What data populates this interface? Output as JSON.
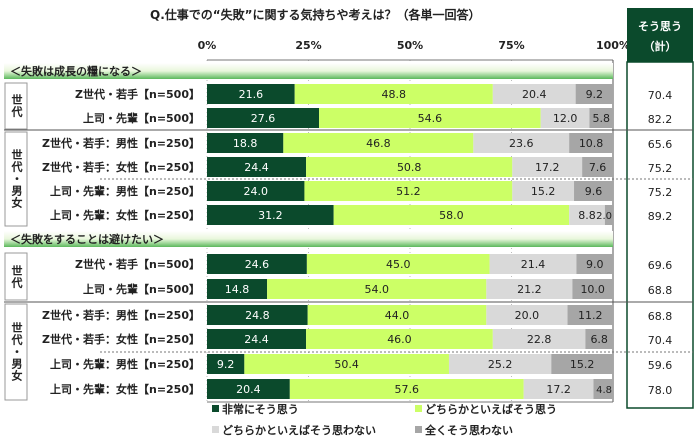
{
  "chart_data": {
    "type": "bar",
    "orientation": "horizontal",
    "stacked": true,
    "title": "Q.仕事での“失敗”に関する気持ちや考えは？（各単一回答）",
    "xlim": [
      0,
      100
    ],
    "x_ticks": [
      "0%",
      "25%",
      "50%",
      "75%",
      "100%"
    ],
    "grid": true,
    "legend_position": "bottom",
    "series": [
      {
        "name": "非常にそう思う",
        "color": "#0b4a2c"
      },
      {
        "name": "どちらかといえばそう思う",
        "color": "#ccff66"
      },
      {
        "name": "どちらかといえばそう思わない",
        "color": "#d9d9d9"
      },
      {
        "name": "全くそう思わない",
        "color": "#a6a6a6"
      }
    ],
    "total_header": [
      "そう思う",
      "（計）"
    ],
    "sections": [
      {
        "label": "＜失敗は成長の糧になる＞",
        "groups": [
          {
            "label": "世代",
            "rows": [
              {
                "label": "Z世代・若手【n=500】",
                "values": [
                  21.6,
                  48.8,
                  20.4,
                  9.2
                ],
                "total": "70.4"
              },
              {
                "label": "上司・先輩【n=500】",
                "values": [
                  27.6,
                  54.6,
                  12.0,
                  5.8
                ],
                "total": "82.2"
              }
            ]
          },
          {
            "label": "世代・男女",
            "rows": [
              {
                "label": "Z世代・若手：男性【n=250】",
                "values": [
                  18.8,
                  46.8,
                  23.6,
                  10.8
                ],
                "total": "65.6"
              },
              {
                "label": "Z世代・若手：女性【n=250】",
                "values": [
                  24.4,
                  50.8,
                  17.2,
                  7.6
                ],
                "total": "75.2"
              },
              {
                "label": "上司・先輩：男性【n=250】",
                "values": [
                  24.0,
                  51.2,
                  15.2,
                  9.6
                ],
                "total": "75.2"
              },
              {
                "label": "上司・先輩：女性【n=250】",
                "values": [
                  31.2,
                  58.0,
                  8.8,
                  2.0
                ],
                "total": "89.2"
              }
            ]
          }
        ]
      },
      {
        "label": "＜失敗をすることは避けたい＞",
        "groups": [
          {
            "label": "世代",
            "rows": [
              {
                "label": "Z世代・若手【n=500】",
                "values": [
                  24.6,
                  45.0,
                  21.4,
                  9.0
                ],
                "total": "69.6"
              },
              {
                "label": "上司・先輩【n=500】",
                "values": [
                  14.8,
                  54.0,
                  21.2,
                  10.0
                ],
                "total": "68.8"
              }
            ]
          },
          {
            "label": "世代・男女",
            "rows": [
              {
                "label": "Z世代・若手：男性【n=250】",
                "values": [
                  24.8,
                  44.0,
                  20.0,
                  11.2
                ],
                "total": "68.8"
              },
              {
                "label": "Z世代・若手：女性【n=250】",
                "values": [
                  24.4,
                  46.0,
                  22.8,
                  6.8
                ],
                "total": "70.4"
              },
              {
                "label": "上司・先輩：男性【n=250】",
                "values": [
                  9.2,
                  50.4,
                  25.2,
                  15.2
                ],
                "total": "59.6"
              },
              {
                "label": "上司・先輩：女性【n=250】",
                "values": [
                  20.4,
                  57.6,
                  17.2,
                  4.8
                ],
                "total": "78.0"
              }
            ]
          }
        ]
      }
    ]
  }
}
